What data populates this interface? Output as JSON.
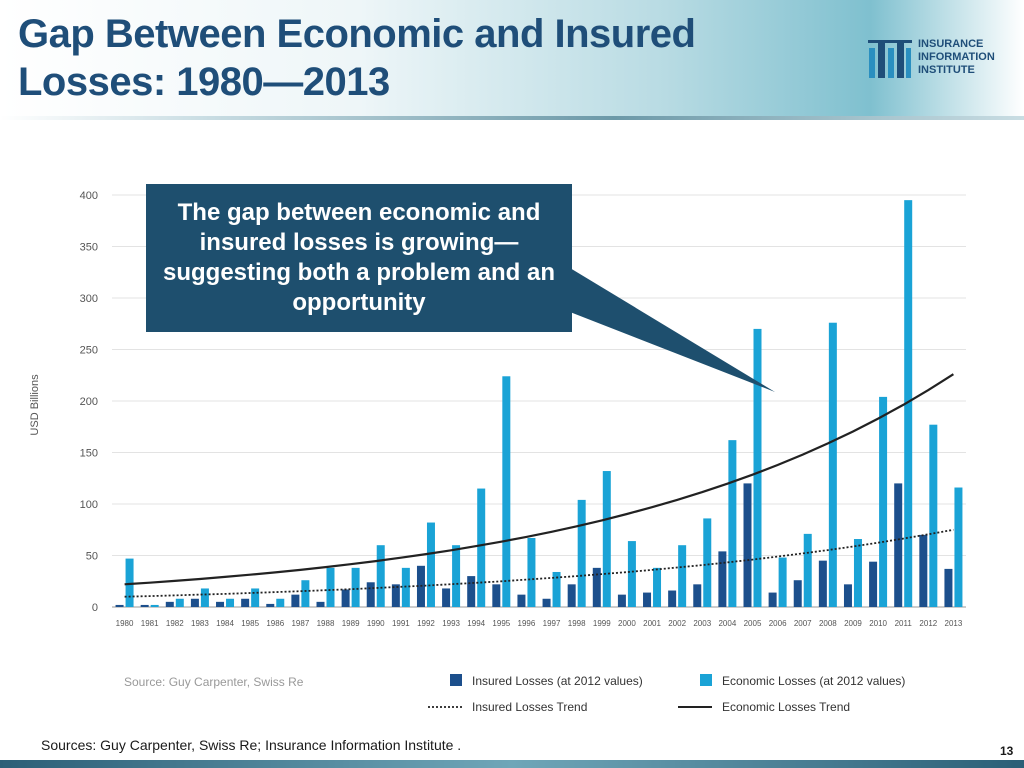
{
  "slide": {
    "title_line1": "Gap Between Economic and Insured",
    "title_line2": "Losses: 1980—2013",
    "logo": {
      "line1": "INSURANCE",
      "line2": "INFORMATION",
      "line3": "INSTITUTE"
    },
    "callout": "The gap between economic and insured losses is growing—suggesting both a problem and an opportunity",
    "footer_source": "Sources:  Guy Carpenter, Swiss Re; Insurance Information Institute .",
    "page_number": "13"
  },
  "chart_data": {
    "type": "bar",
    "ylabel": "USD Billions",
    "ylim": [
      0,
      400
    ],
    "yticks": [
      "0",
      "50",
      "100",
      "150",
      "200",
      "250",
      "300",
      "350",
      "400"
    ],
    "source_note": "Source: Guy Carpenter, Swiss Re",
    "categories": [
      "1980",
      "1981",
      "1982",
      "1983",
      "1984",
      "1985",
      "1986",
      "1987",
      "1988",
      "1989",
      "1990",
      "1991",
      "1992",
      "1993",
      "1994",
      "1995",
      "1996",
      "1997",
      "1998",
      "1999",
      "2000",
      "2001",
      "2002",
      "2003",
      "2004",
      "2005",
      "2006",
      "2007",
      "2008",
      "2009",
      "2010",
      "2011",
      "2012",
      "2013"
    ],
    "series": [
      {
        "name": "Insured Losses (at 2012 values)",
        "color": "#1c4f8c",
        "values": [
          2,
          2,
          5,
          8,
          5,
          8,
          3,
          12,
          5,
          17,
          24,
          22,
          40,
          18,
          30,
          22,
          12,
          8,
          22,
          38,
          12,
          14,
          16,
          22,
          54,
          120,
          14,
          26,
          45,
          22,
          44,
          120,
          70,
          37
        ]
      },
      {
        "name": "Economic Losses (at 2012 values)",
        "color": "#1aa3d6",
        "values": [
          47,
          2,
          8,
          18,
          8,
          18,
          8,
          26,
          38,
          38,
          60,
          38,
          82,
          60,
          115,
          224,
          67,
          34,
          104,
          132,
          64,
          38,
          60,
          86,
          162,
          270,
          48,
          71,
          276,
          66,
          204,
          395,
          177,
          116
        ]
      }
    ],
    "trends": [
      {
        "name": "Insured Losses Trend",
        "style": "dotted",
        "color": "#222222",
        "start": 10,
        "end": 75
      },
      {
        "name": "Economic Losses Trend",
        "style": "solid",
        "color": "#222222",
        "start": 22,
        "end": 226
      }
    ]
  }
}
